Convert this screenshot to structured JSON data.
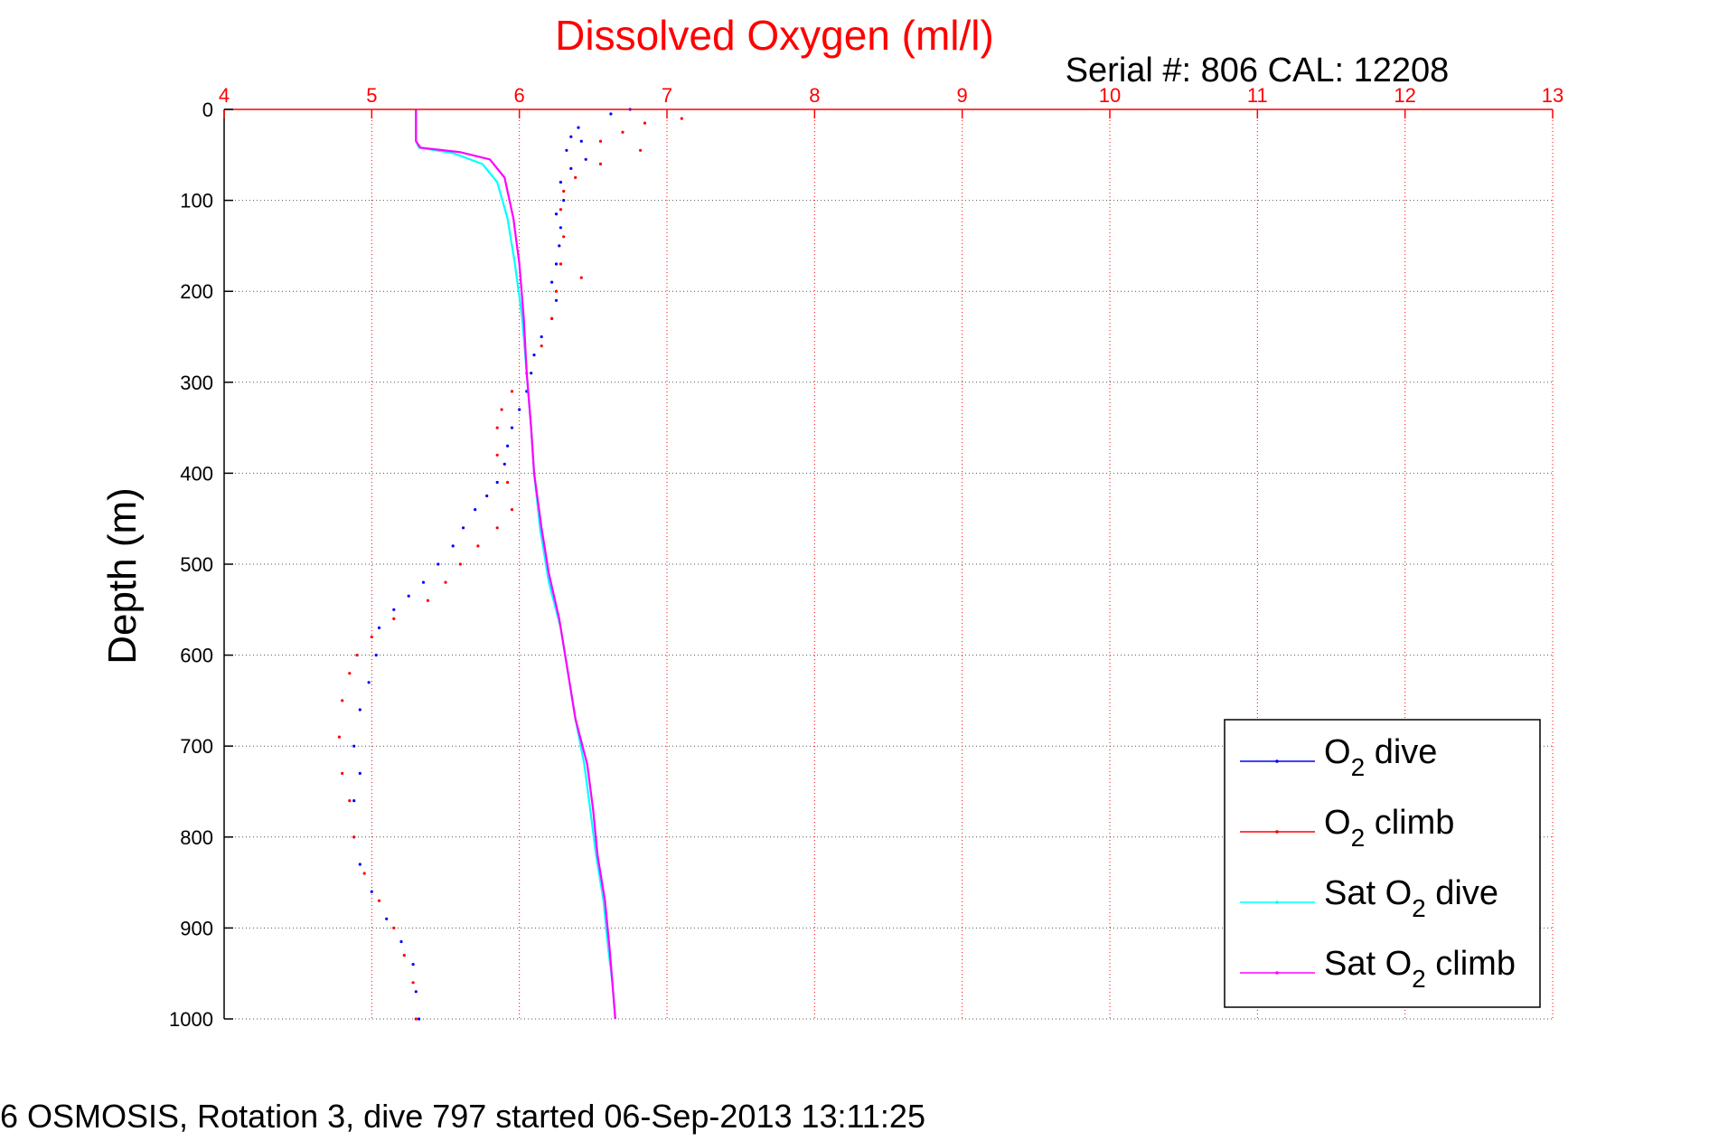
{
  "chart_data": {
    "type": "scatter",
    "title": "Dissolved Oxygen (ml/l)",
    "annotation": "Serial #: 806  CAL: 12208",
    "xlabel": "",
    "ylabel": "Depth (m)",
    "footer": "6 OSMOSIS, Rotation 3, dive 797 started 06-Sep-2013 13:11:25",
    "xlim": [
      4,
      13
    ],
    "ylim": [
      0,
      1000
    ],
    "y_reversed": true,
    "x_axis_position": "top",
    "xticks": [
      "4",
      "5",
      "6",
      "7",
      "8",
      "9",
      "10",
      "11",
      "12",
      "13"
    ],
    "yticks": [
      "0",
      "100",
      "200",
      "300",
      "400",
      "500",
      "600",
      "700",
      "800",
      "900",
      "1000"
    ],
    "grid": true,
    "legend_position": "bottom-right",
    "series": [
      {
        "name": "O₂ dive",
        "label_main": "O",
        "label_sub": "2",
        "label_rest": " dive",
        "color": "#0000ff",
        "style": "dots",
        "points": [
          [
            6.75,
            0
          ],
          [
            6.62,
            5
          ],
          [
            6.4,
            20
          ],
          [
            6.35,
            30
          ],
          [
            6.42,
            35
          ],
          [
            6.32,
            45
          ],
          [
            6.45,
            55
          ],
          [
            6.35,
            65
          ],
          [
            6.28,
            80
          ],
          [
            6.3,
            100
          ],
          [
            6.25,
            115
          ],
          [
            6.28,
            130
          ],
          [
            6.27,
            150
          ],
          [
            6.25,
            170
          ],
          [
            6.22,
            190
          ],
          [
            6.25,
            210
          ],
          [
            6.22,
            230
          ],
          [
            6.15,
            250
          ],
          [
            6.1,
            270
          ],
          [
            6.08,
            290
          ],
          [
            6.05,
            310
          ],
          [
            6.0,
            330
          ],
          [
            5.95,
            350
          ],
          [
            5.92,
            370
          ],
          [
            5.9,
            390
          ],
          [
            5.85,
            410
          ],
          [
            5.78,
            425
          ],
          [
            5.7,
            440
          ],
          [
            5.62,
            460
          ],
          [
            5.55,
            480
          ],
          [
            5.45,
            500
          ],
          [
            5.35,
            520
          ],
          [
            5.25,
            535
          ],
          [
            5.15,
            550
          ],
          [
            5.05,
            570
          ],
          [
            5.03,
            600
          ],
          [
            4.98,
            630
          ],
          [
            4.92,
            660
          ],
          [
            4.88,
            700
          ],
          [
            4.92,
            730
          ],
          [
            4.88,
            760
          ],
          [
            4.88,
            800
          ],
          [
            4.92,
            830
          ],
          [
            5.0,
            860
          ],
          [
            5.1,
            890
          ],
          [
            5.2,
            915
          ],
          [
            5.28,
            940
          ],
          [
            5.3,
            970
          ],
          [
            5.32,
            1000
          ]
        ]
      },
      {
        "name": "O₂ climb",
        "label_main": "O",
        "label_sub": "2",
        "label_rest": " climb",
        "color": "#ff0000",
        "style": "dots",
        "points": [
          [
            7.1,
            10
          ],
          [
            6.85,
            15
          ],
          [
            6.7,
            25
          ],
          [
            6.55,
            35
          ],
          [
            6.82,
            45
          ],
          [
            6.55,
            60
          ],
          [
            6.38,
            75
          ],
          [
            6.3,
            90
          ],
          [
            6.28,
            110
          ],
          [
            6.3,
            140
          ],
          [
            6.28,
            170
          ],
          [
            6.42,
            185
          ],
          [
            6.25,
            200
          ],
          [
            6.22,
            230
          ],
          [
            6.15,
            260
          ],
          [
            6.05,
            290
          ],
          [
            5.95,
            310
          ],
          [
            5.88,
            330
          ],
          [
            5.85,
            350
          ],
          [
            5.85,
            380
          ],
          [
            5.92,
            410
          ],
          [
            5.95,
            440
          ],
          [
            5.85,
            460
          ],
          [
            5.72,
            480
          ],
          [
            5.6,
            500
          ],
          [
            5.5,
            520
          ],
          [
            5.38,
            540
          ],
          [
            5.15,
            560
          ],
          [
            5.0,
            580
          ],
          [
            4.9,
            600
          ],
          [
            4.85,
            620
          ],
          [
            4.8,
            650
          ],
          [
            4.78,
            690
          ],
          [
            4.8,
            730
          ],
          [
            4.85,
            760
          ],
          [
            4.88,
            800
          ],
          [
            4.95,
            840
          ],
          [
            5.05,
            870
          ],
          [
            5.15,
            900
          ],
          [
            5.22,
            930
          ],
          [
            5.28,
            960
          ],
          [
            5.3,
            1000
          ]
        ]
      },
      {
        "name": "Sat O₂ dive",
        "label_main": "Sat O",
        "label_sub": "2",
        "label_rest": " dive",
        "color": "#00ffff",
        "style": "line",
        "points": [
          [
            5.3,
            0
          ],
          [
            5.3,
            35
          ],
          [
            5.32,
            42
          ],
          [
            5.55,
            48
          ],
          [
            5.75,
            60
          ],
          [
            5.85,
            80
          ],
          [
            5.92,
            120
          ],
          [
            5.97,
            170
          ],
          [
            6.02,
            230
          ],
          [
            6.05,
            290
          ],
          [
            6.08,
            350
          ],
          [
            6.1,
            400
          ],
          [
            6.14,
            460
          ],
          [
            6.2,
            520
          ],
          [
            6.28,
            570
          ],
          [
            6.33,
            620
          ],
          [
            6.38,
            670
          ],
          [
            6.44,
            720
          ],
          [
            6.48,
            770
          ],
          [
            6.52,
            820
          ],
          [
            6.57,
            870
          ],
          [
            6.6,
            920
          ],
          [
            6.63,
            960
          ],
          [
            6.65,
            1000
          ]
        ]
      },
      {
        "name": "Sat O₂ climb",
        "label_main": "Sat O",
        "label_sub": "2",
        "label_rest": " climb",
        "color": "#ff00ff",
        "style": "line",
        "points": [
          [
            5.3,
            0
          ],
          [
            5.3,
            35
          ],
          [
            5.33,
            42
          ],
          [
            5.6,
            47
          ],
          [
            5.8,
            55
          ],
          [
            5.9,
            75
          ],
          [
            5.96,
            120
          ],
          [
            6.0,
            170
          ],
          [
            6.03,
            230
          ],
          [
            6.05,
            290
          ],
          [
            6.08,
            350
          ],
          [
            6.1,
            400
          ],
          [
            6.15,
            460
          ],
          [
            6.2,
            510
          ],
          [
            6.27,
            560
          ],
          [
            6.33,
            620
          ],
          [
            6.38,
            670
          ],
          [
            6.46,
            720
          ],
          [
            6.5,
            770
          ],
          [
            6.53,
            820
          ],
          [
            6.58,
            870
          ],
          [
            6.61,
            920
          ],
          [
            6.63,
            960
          ],
          [
            6.65,
            1000
          ]
        ]
      }
    ]
  },
  "colors": {
    "axis_red": "#ff0000",
    "grid_red": "#ff0000",
    "grid_black": "#555555",
    "background": "#ffffff"
  }
}
